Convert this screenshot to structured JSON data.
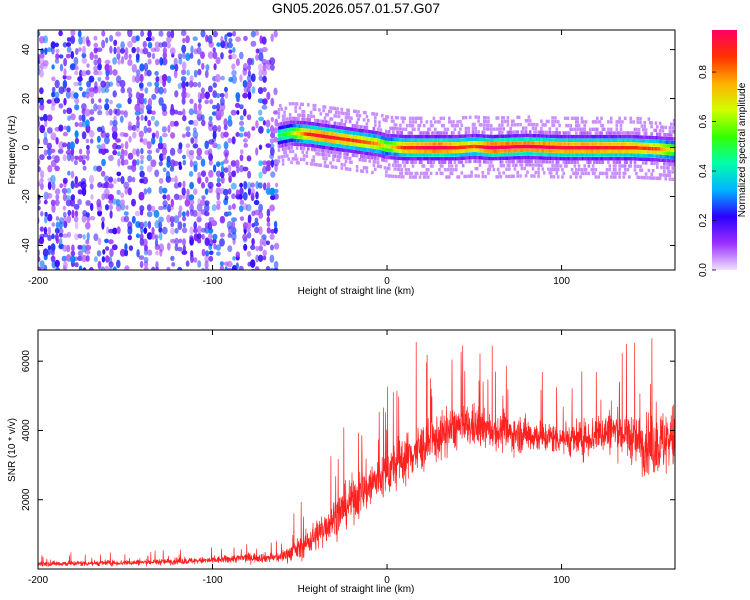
{
  "figure_title": "GN05.2026.057.01.57.G07",
  "chart_data": [
    {
      "type": "heatmap",
      "title": "GN05.2026.057.01.57.G07",
      "xlabel": "Height of straight line (km)",
      "ylabel": "Frequency (Hz)",
      "xlim": [
        -200,
        165
      ],
      "ylim": [
        -50,
        48
      ],
      "x_ticks": [
        -200,
        -100,
        0,
        100
      ],
      "y_ticks": [
        -40,
        -20,
        0,
        20,
        40
      ],
      "colorbar": {
        "label": "Normalized spectral amplitude",
        "range": [
          0,
          0.97
        ],
        "ticks": [
          0.0,
          0.2,
          0.4,
          0.6,
          0.8
        ],
        "colors": [
          "#f0e0ff",
          "#9b30ff",
          "#2b00ff",
          "#00b4ff",
          "#00ffaa",
          "#33ff00",
          "#d2ff00",
          "#ffb000",
          "#ff3000",
          "#ff0064"
        ]
      },
      "ridge": {
        "x": [
          -62,
          -55,
          -45,
          -35,
          -25,
          -15,
          -5,
          0,
          10,
          20,
          30,
          40,
          50,
          60,
          80,
          100,
          120,
          140,
          155,
          165
        ],
        "y": [
          5,
          6,
          5.5,
          4.5,
          3.5,
          2.5,
          1.5,
          0.5,
          0,
          0,
          0,
          0,
          0.5,
          0,
          0.5,
          0,
          0,
          0,
          -0.5,
          -1
        ],
        "amplitude": [
          0.45,
          0.55,
          0.85,
          0.9,
          0.85,
          0.8,
          0.75,
          0.6,
          0.85,
          0.9,
          0.95,
          0.85,
          0.8,
          0.95,
          0.95,
          0.9,
          0.9,
          0.85,
          0.8,
          0.6
        ]
      },
      "noise_region": {
        "x": [
          -200,
          -62
        ],
        "y": [
          -50,
          48
        ],
        "amplitude_range": [
          0.05,
          0.3
        ]
      }
    },
    {
      "type": "line",
      "title": "",
      "xlabel": "Height of straight line (km)",
      "ylabel": "SNR (10 * v/v)",
      "xlim": [
        -200,
        165
      ],
      "ylim": [
        0,
        6900
      ],
      "x_ticks": [
        -200,
        -100,
        0,
        100
      ],
      "y_ticks": [
        2000,
        4000,
        6000
      ],
      "series": [
        {
          "name": "SNR",
          "color": "#ff2020",
          "envelope_x": [
            -200,
            -150,
            -100,
            -80,
            -62,
            -50,
            -40,
            -30,
            -20,
            -10,
            0,
            10,
            20,
            30,
            40,
            50,
            60,
            70,
            80,
            90,
            100,
            110,
            120,
            130,
            140,
            150,
            160,
            165
          ],
          "envelope_mean": [
            150,
            180,
            250,
            330,
            330,
            600,
            1000,
            1500,
            2000,
            2400,
            2800,
            3200,
            3500,
            3800,
            4100,
            4100,
            4000,
            3900,
            3900,
            3800,
            3800,
            3700,
            3900,
            4000,
            3800,
            3500,
            3700,
            3800
          ],
          "envelope_spread": [
            120,
            120,
            150,
            200,
            220,
            500,
            700,
            900,
            1000,
            1100,
            1100,
            1100,
            1100,
            1000,
            1000,
            900,
            800,
            800,
            800,
            700,
            700,
            800,
            900,
            1000,
            1100,
            1300,
            1500,
            1500
          ]
        }
      ]
    }
  ]
}
